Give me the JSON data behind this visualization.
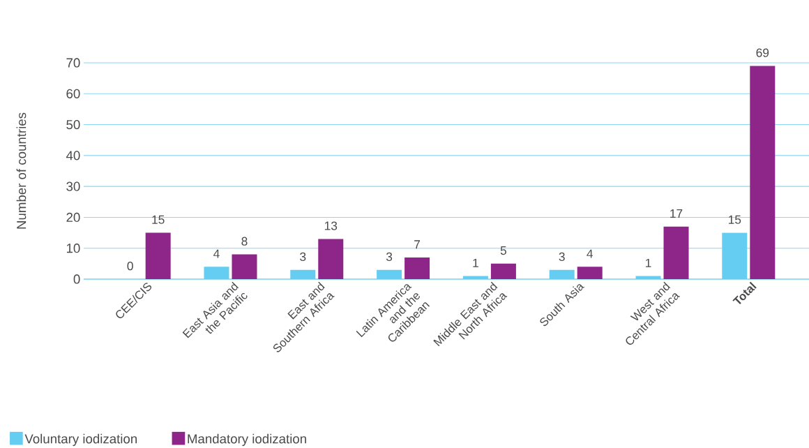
{
  "chart_data": {
    "type": "bar",
    "ylabel": "Number of countries",
    "categories": [
      "CEE/CIS",
      "East Asia and the Pacific",
      "East and Southern Africa",
      "Latin America and the Caribbean",
      "Middle East and North Africa",
      "South Asia",
      "West and Central Africa",
      "**Total**"
    ],
    "series": [
      {
        "name": "Voluntary iodization",
        "color": "#66cdf2",
        "values": [
          0,
          4,
          3,
          3,
          1,
          3,
          1,
          15
        ]
      },
      {
        "name": "Mandatory iodization",
        "color": "#8e2589",
        "values": [
          15,
          8,
          13,
          7,
          5,
          4,
          17,
          69
        ]
      }
    ],
    "ylim": [
      0,
      70
    ],
    "yticks": [
      0,
      10,
      20,
      30,
      40,
      50,
      60,
      70
    ],
    "grid": "y",
    "legend": "bottom left",
    "data_labels": true
  }
}
